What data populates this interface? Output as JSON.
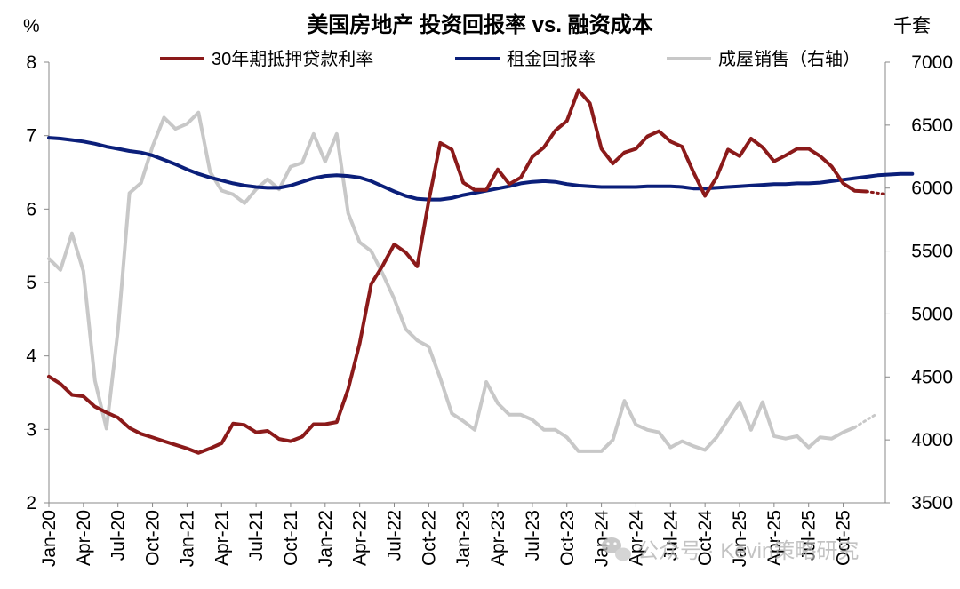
{
  "chart_data": {
    "type": "line",
    "title": "美国房地产 投资回报率 vs. 融资成本",
    "ylabel_left": "%",
    "ylabel_right": "千套",
    "ylim_left": [
      2,
      8
    ],
    "yticks_left": [
      "2",
      "3",
      "4",
      "5",
      "6",
      "7",
      "8"
    ],
    "ylim_right": [
      3500,
      7000
    ],
    "yticks_right": [
      "3500",
      "4000",
      "4500",
      "5000",
      "5500",
      "6000",
      "6500",
      "7000"
    ],
    "x_tick_labels": [
      "Jan-20",
      "Apr-20",
      "Jul-20",
      "Oct-20",
      "Jan-21",
      "Apr-21",
      "Jul-21",
      "Oct-21",
      "Jan-22",
      "Apr-22",
      "Jul-22",
      "Oct-22",
      "Jan-23",
      "Apr-23",
      "Jul-23",
      "Oct-23",
      "Jan-24",
      "Apr-24",
      "Jul-24",
      "Oct-24",
      "Jan-25",
      "Apr-25",
      "Jul-25",
      "Oct-25"
    ],
    "grid": false,
    "legend_position": "top",
    "series": [
      {
        "name": "30年期抵押贷款利率",
        "axis": "left",
        "color": "#8b1a1a",
        "values": [
          3.72,
          3.62,
          3.47,
          3.45,
          3.31,
          3.23,
          3.16,
          3.02,
          2.94,
          2.89,
          2.84,
          2.79,
          2.74,
          2.68,
          2.74,
          2.81,
          3.08,
          3.06,
          2.96,
          2.98,
          2.87,
          2.84,
          2.9,
          3.07,
          3.07,
          3.1,
          3.55,
          4.17,
          4.98,
          5.23,
          5.52,
          5.41,
          5.22,
          6.11,
          6.9,
          6.81,
          6.36,
          6.26,
          6.26,
          6.54,
          6.34,
          6.43,
          6.71,
          6.84,
          7.07,
          7.2,
          7.62,
          7.44,
          6.82,
          6.62,
          6.77,
          6.82,
          6.99,
          7.06,
          6.92,
          6.85,
          6.5,
          6.18,
          6.43,
          6.81,
          6.72,
          6.96,
          6.84,
          6.65,
          6.73,
          6.82,
          6.82,
          6.72,
          6.58,
          6.35,
          6.25,
          6.24
        ],
        "forecast": [
          6.24,
          6.2
        ]
      },
      {
        "name": "租金回报率",
        "axis": "left",
        "color": "#0b1f7a",
        "values": [
          6.97,
          6.96,
          6.94,
          6.92,
          6.89,
          6.85,
          6.82,
          6.79,
          6.77,
          6.73,
          6.67,
          6.61,
          6.54,
          6.48,
          6.43,
          6.39,
          6.35,
          6.32,
          6.3,
          6.29,
          6.29,
          6.32,
          6.37,
          6.42,
          6.45,
          6.46,
          6.45,
          6.43,
          6.38,
          6.31,
          6.24,
          6.18,
          6.14,
          6.13,
          6.13,
          6.15,
          6.19,
          6.22,
          6.25,
          6.28,
          6.31,
          6.35,
          6.37,
          6.38,
          6.37,
          6.34,
          6.32,
          6.31,
          6.3,
          6.3,
          6.3,
          6.3,
          6.31,
          6.31,
          6.31,
          6.3,
          6.28,
          6.28,
          6.29,
          6.3,
          6.31,
          6.32,
          6.33,
          6.34,
          6.34,
          6.35,
          6.35,
          6.36,
          6.38,
          6.4,
          6.42,
          6.44,
          6.46,
          6.47,
          6.48,
          6.48
        ]
      },
      {
        "name": "成屋销售（右轴）",
        "axis": "right",
        "color": "#c8c8c8",
        "values": [
          5440,
          5350,
          5640,
          5340,
          4470,
          4090,
          4870,
          5960,
          6040,
          6330,
          6560,
          6470,
          6510,
          6600,
          6130,
          5980,
          5950,
          5880,
          5990,
          6070,
          5990,
          6170,
          6200,
          6430,
          6210,
          6430,
          5800,
          5570,
          5500,
          5320,
          5120,
          4880,
          4790,
          4740,
          4490,
          4210,
          4150,
          4080,
          4460,
          4290,
          4200,
          4200,
          4160,
          4080,
          4080,
          4020,
          3910,
          3910,
          3910,
          4000,
          4310,
          4120,
          4080,
          4060,
          3940,
          3990,
          3950,
          3920,
          4020,
          4160,
          4300,
          4080,
          4300,
          4030,
          4010,
          4030,
          3940,
          4020,
          4010,
          4060,
          4100
        ],
        "forecast": [
          4100,
          4200
        ]
      }
    ]
  },
  "watermark": {
    "icon": "wechat-icon",
    "text": "公众号 · Kevin策略研究"
  }
}
